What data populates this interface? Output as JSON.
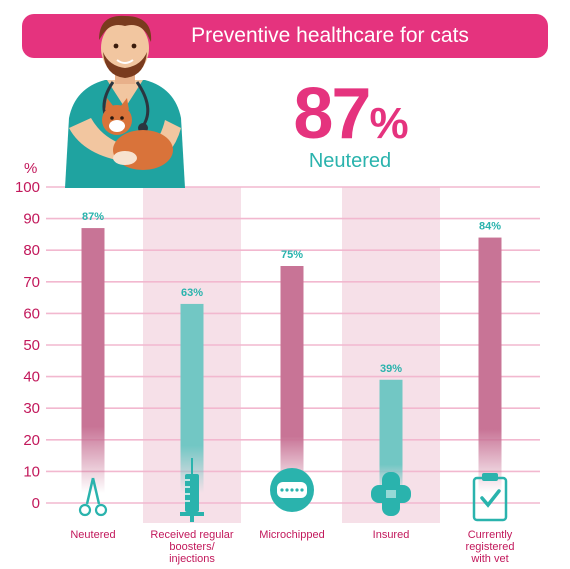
{
  "header": {
    "title": "Preventive healthcare for cats"
  },
  "highlight": {
    "value": "87",
    "unit": "%",
    "label": "Neutered"
  },
  "colors": {
    "pink": "#e5337e",
    "teal": "#2ab3ad",
    "bar_pink": "#c87496",
    "bar_teal": "#72c7c4",
    "grid": "#f2b8cf",
    "band": "#f6e0e8"
  },
  "chart_data": {
    "type": "bar",
    "ylabel": "%",
    "ylim": [
      0,
      100
    ],
    "yticks": [
      0,
      10,
      20,
      30,
      40,
      50,
      60,
      70,
      80,
      90,
      100
    ],
    "categories": [
      "Neutered",
      "Received regular boosters/ injections",
      "Microchipped",
      "Insured",
      "Currently registered with vet"
    ],
    "category_lines": [
      [
        "Neutered"
      ],
      [
        "Received regular",
        "boosters/",
        "injections"
      ],
      [
        "Microchipped"
      ],
      [
        "Insured"
      ],
      [
        "Currently",
        "registered",
        "with vet"
      ]
    ],
    "values": [
      87,
      63,
      75,
      39,
      84
    ],
    "value_labels": [
      "87%",
      "63%",
      "75%",
      "39%",
      "84%"
    ],
    "bar_colors": [
      "pink",
      "teal",
      "pink",
      "teal",
      "pink"
    ],
    "icons": [
      "scissors-icon",
      "syringe-icon",
      "microchip-icon",
      "plaster-icon",
      "clipboard-check-icon"
    ],
    "grid": true
  }
}
